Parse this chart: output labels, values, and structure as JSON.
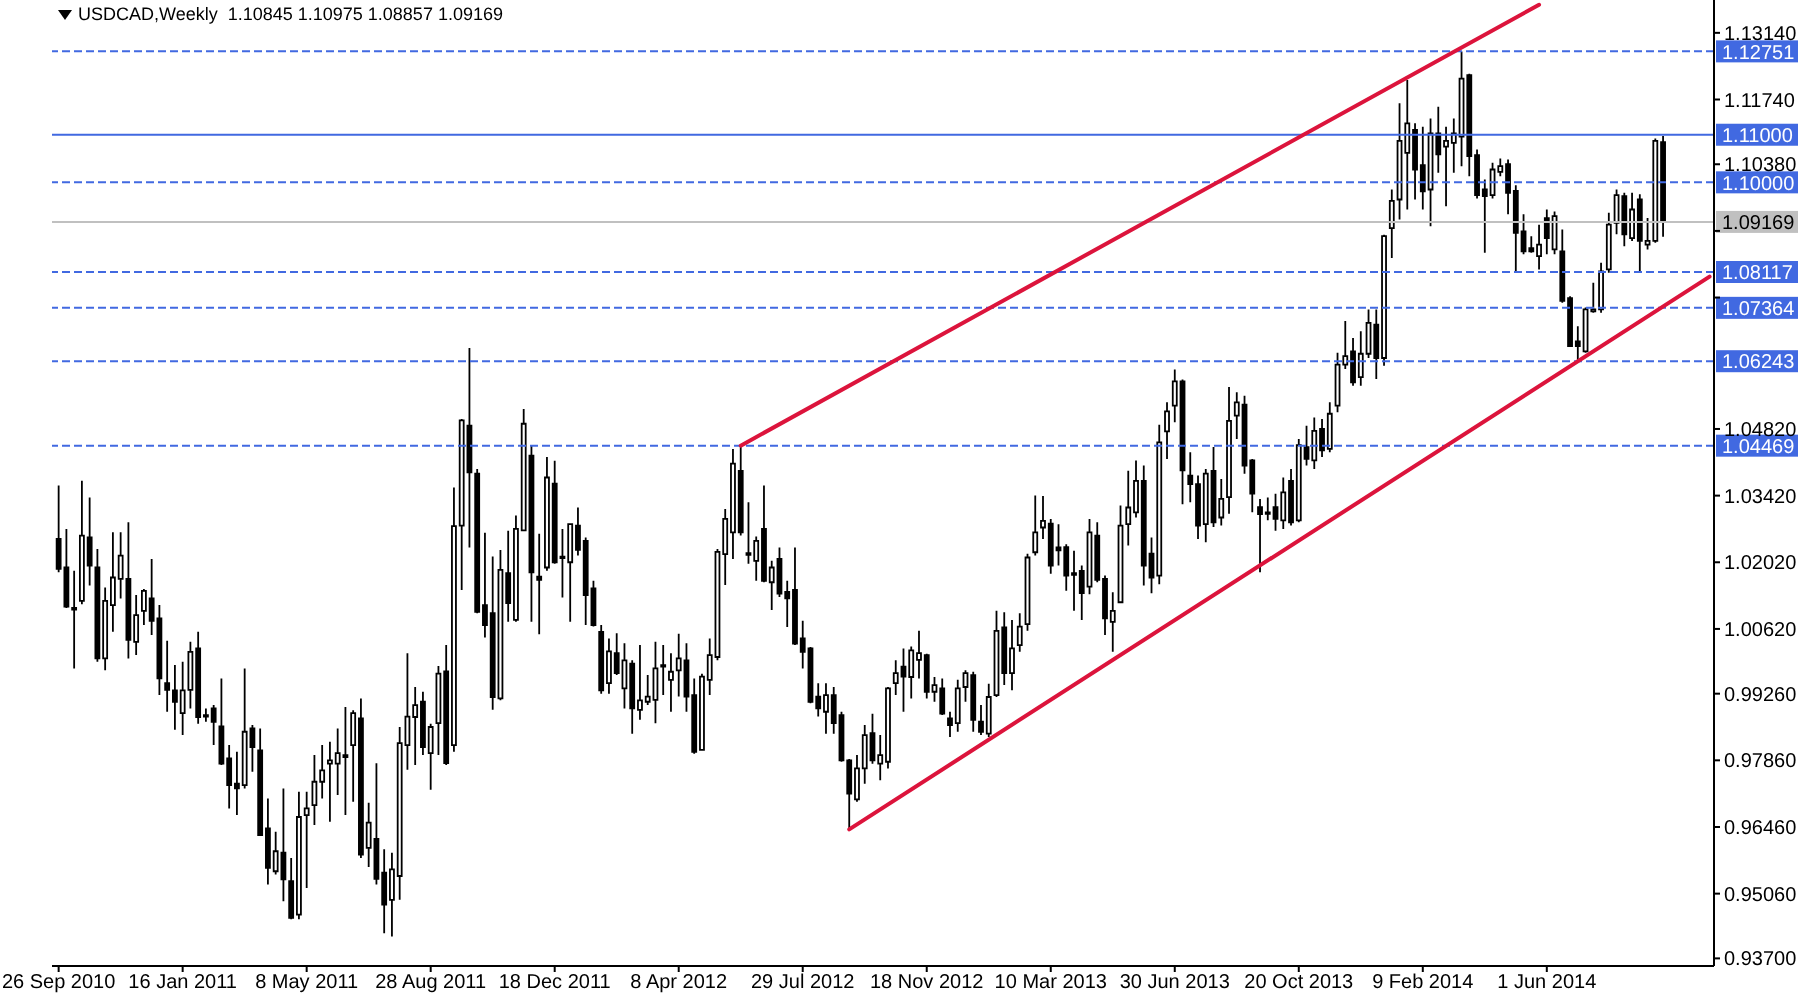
{
  "chart_data": {
    "type": "candlestick",
    "title": "USDCAD,Weekly  1.10845 1.10975 1.08857 1.09169",
    "color": "#000000",
    "x": [
      "2010-09-26",
      "2010-10-03",
      "2010-10-10",
      "2010-10-17",
      "2010-10-24",
      "2010-10-31",
      "2010-11-07",
      "2010-11-14",
      "2010-11-21",
      "2010-11-28",
      "2010-12-05",
      "2010-12-12",
      "2010-12-19",
      "2010-12-26",
      "2011-01-02",
      "2011-01-09",
      "2011-01-16",
      "2011-01-23",
      "2011-01-30",
      "2011-02-06",
      "2011-02-13",
      "2011-02-20",
      "2011-02-27",
      "2011-03-06",
      "2011-03-13",
      "2011-03-20",
      "2011-03-27",
      "2011-04-03",
      "2011-04-10",
      "2011-04-17",
      "2011-04-24",
      "2011-05-01",
      "2011-05-08",
      "2011-05-15",
      "2011-05-22",
      "2011-05-29",
      "2011-06-05",
      "2011-06-12",
      "2011-06-19",
      "2011-06-26",
      "2011-07-03",
      "2011-07-10",
      "2011-07-17",
      "2011-07-24",
      "2011-07-31",
      "2011-08-07",
      "2011-08-14",
      "2011-08-21",
      "2011-08-28",
      "2011-09-04",
      "2011-09-11",
      "2011-09-18",
      "2011-09-25",
      "2011-10-02",
      "2011-10-09",
      "2011-10-16",
      "2011-10-23",
      "2011-10-30",
      "2011-11-06",
      "2011-11-13",
      "2011-11-20",
      "2011-11-27",
      "2011-12-04",
      "2011-12-11",
      "2011-12-18",
      "2011-12-25",
      "2012-01-01",
      "2012-01-08",
      "2012-01-15",
      "2012-01-22",
      "2012-01-29",
      "2012-02-05",
      "2012-02-12",
      "2012-02-19",
      "2012-02-26",
      "2012-03-04",
      "2012-03-11",
      "2012-03-18",
      "2012-03-25",
      "2012-04-01",
      "2012-04-08",
      "2012-04-15",
      "2012-04-22",
      "2012-04-29",
      "2012-05-06",
      "2012-05-13",
      "2012-05-20",
      "2012-05-27",
      "2012-06-03",
      "2012-06-10",
      "2012-06-17",
      "2012-06-24",
      "2012-07-01",
      "2012-07-08",
      "2012-07-15",
      "2012-07-22",
      "2012-07-29",
      "2012-08-05",
      "2012-08-12",
      "2012-08-19",
      "2012-08-26",
      "2012-09-02",
      "2012-09-09",
      "2012-09-16",
      "2012-09-23",
      "2012-09-30",
      "2012-10-07",
      "2012-10-14",
      "2012-10-21",
      "2012-10-28",
      "2012-11-04",
      "2012-11-11",
      "2012-11-18",
      "2012-11-25",
      "2012-12-02",
      "2012-12-09",
      "2012-12-16",
      "2012-12-23",
      "2012-12-30",
      "2013-01-06",
      "2013-01-13",
      "2013-01-20",
      "2013-01-27",
      "2013-02-03",
      "2013-02-10",
      "2013-02-17",
      "2013-02-24",
      "2013-03-03",
      "2013-03-10",
      "2013-03-17",
      "2013-03-24",
      "2013-03-31",
      "2013-04-07",
      "2013-04-14",
      "2013-04-21",
      "2013-04-28",
      "2013-05-05",
      "2013-05-12",
      "2013-05-19",
      "2013-05-26",
      "2013-06-02",
      "2013-06-09",
      "2013-06-16",
      "2013-06-23",
      "2013-06-30",
      "2013-07-07",
      "2013-07-14",
      "2013-07-21",
      "2013-07-28",
      "2013-08-04",
      "2013-08-11",
      "2013-08-18",
      "2013-08-25",
      "2013-09-01",
      "2013-09-08",
      "2013-09-15",
      "2013-09-22",
      "2013-09-29",
      "2013-10-06",
      "2013-10-13",
      "2013-10-20",
      "2013-10-27",
      "2013-11-03",
      "2013-11-10",
      "2013-11-17",
      "2013-11-24",
      "2013-12-01",
      "2013-12-08",
      "2013-12-15",
      "2013-12-22",
      "2013-12-29",
      "2014-01-05",
      "2014-01-12",
      "2014-01-19",
      "2014-01-26",
      "2014-02-02",
      "2014-02-09",
      "2014-02-16",
      "2014-02-23",
      "2014-03-02",
      "2014-03-09",
      "2014-03-16",
      "2014-03-23",
      "2014-03-30",
      "2014-04-06",
      "2014-04-13",
      "2014-04-20",
      "2014-04-27",
      "2014-05-04",
      "2014-05-11",
      "2014-05-18",
      "2014-05-25",
      "2014-06-01",
      "2014-06-08",
      "2014-06-15",
      "2014-06-22",
      "2014-06-29",
      "2014-07-06",
      "2014-07-13",
      "2014-07-20",
      "2014-07-27",
      "2014-08-03",
      "2014-08-10",
      "2014-08-17",
      "2014-08-24",
      "2014-08-31",
      "2014-09-07",
      "2014-09-14"
    ],
    "ohlc": [
      [
        1.0251,
        1.0363,
        1.0181,
        1.0188
      ],
      [
        1.0191,
        1.0272,
        1.0106,
        1.0109
      ],
      [
        1.0106,
        1.0184,
        0.9979,
        1.0103
      ],
      [
        1.0121,
        1.0373,
        1.0114,
        1.0258
      ],
      [
        1.0254,
        1.0338,
        1.0153,
        1.0195
      ],
      [
        1.0191,
        1.023,
        0.9993,
        1.0
      ],
      [
        1.0,
        1.0149,
        0.9975,
        1.0121
      ],
      [
        1.0112,
        1.0265,
        1.0056,
        1.017
      ],
      [
        1.0167,
        1.0265,
        1.0126,
        1.0216
      ],
      [
        1.0167,
        1.0286,
        1.0,
        1.0039
      ],
      [
        1.0035,
        1.0133,
        1.0007,
        1.0091
      ],
      [
        1.01,
        1.0146,
        1.007,
        1.0142
      ],
      [
        1.0126,
        1.0209,
        1.0049,
        1.0079
      ],
      [
        1.0084,
        1.0112,
        0.9923,
        0.9958
      ],
      [
        0.9948,
        1.0037,
        0.9888,
        0.9934
      ],
      [
        0.9933,
        0.9986,
        0.985,
        0.9909
      ],
      [
        0.9885,
        0.9993,
        0.9839,
        0.9933
      ],
      [
        0.9934,
        1.0035,
        0.9895,
        1.0014
      ],
      [
        1.0021,
        1.0056,
        0.9863,
        0.9877
      ],
      [
        0.9881,
        0.9895,
        0.9867,
        0.988
      ],
      [
        0.9895,
        0.9902,
        0.9818,
        0.9867
      ],
      [
        0.9857,
        0.9958,
        0.9776,
        0.9779
      ],
      [
        0.979,
        0.9818,
        0.9685,
        0.9734
      ],
      [
        0.9737,
        0.9804,
        0.9671,
        0.9727
      ],
      [
        0.9734,
        0.9979,
        0.9727,
        0.9846
      ],
      [
        0.9853,
        0.986,
        0.9762,
        0.9814
      ],
      [
        0.9807,
        0.9853,
        0.9627,
        0.9629
      ],
      [
        0.9643,
        0.9706,
        0.9525,
        0.956
      ],
      [
        0.9553,
        0.9636,
        0.9546,
        0.9595
      ],
      [
        0.9592,
        0.9727,
        0.949,
        0.9536
      ],
      [
        0.9532,
        0.9581,
        0.9452,
        0.9455
      ],
      [
        0.9462,
        0.972,
        0.9452,
        0.9667
      ],
      [
        0.9671,
        0.972,
        0.9518,
        0.9685
      ],
      [
        0.9692,
        0.9797,
        0.965,
        0.9741
      ],
      [
        0.9741,
        0.9818,
        0.9706,
        0.9765
      ],
      [
        0.9779,
        0.9825,
        0.9657,
        0.9786
      ],
      [
        0.9779,
        0.9853,
        0.9713,
        0.9801
      ],
      [
        0.9797,
        0.9898,
        0.9671,
        0.9793
      ],
      [
        0.9818,
        0.9891,
        0.9699,
        0.9885
      ],
      [
        0.9874,
        0.9916,
        0.9581,
        0.9588
      ],
      [
        0.9602,
        0.9697,
        0.9562,
        0.9655
      ],
      [
        0.9621,
        0.978,
        0.9525,
        0.9537
      ],
      [
        0.955,
        0.9599,
        0.9423,
        0.9483
      ],
      [
        0.9493,
        0.9592,
        0.9416,
        0.9557
      ],
      [
        0.9543,
        0.9856,
        0.9493,
        0.9822
      ],
      [
        0.9818,
        1.0011,
        0.9766,
        0.9878
      ],
      [
        0.9877,
        0.994,
        0.9776,
        0.9902
      ],
      [
        0.9909,
        0.993,
        0.9797,
        0.9814
      ],
      [
        0.9801,
        0.9863,
        0.9724,
        0.9856
      ],
      [
        0.9864,
        0.9984,
        0.9797,
        0.9968
      ],
      [
        0.9973,
        1.0028,
        0.9776,
        0.978
      ],
      [
        0.9818,
        1.0359,
        0.9804,
        1.0278
      ],
      [
        1.0279,
        1.0503,
        1.0144,
        1.05
      ],
      [
        1.0489,
        1.0652,
        1.0233,
        1.0391
      ],
      [
        1.0388,
        1.0398,
        1.0095,
        1.0098
      ],
      [
        1.0112,
        1.0264,
        1.0044,
        1.007
      ],
      [
        1.0095,
        1.0214,
        0.9892,
        0.9919
      ],
      [
        0.9916,
        1.0228,
        0.9912,
        1.0186
      ],
      [
        1.0179,
        1.0268,
        1.0077,
        1.0116
      ],
      [
        1.0081,
        1.03,
        1.0077,
        1.0272
      ],
      [
        1.0269,
        1.0524,
        1.0268,
        1.0493
      ],
      [
        1.0426,
        1.0447,
        1.0077,
        1.0181
      ],
      [
        1.0172,
        1.0262,
        1.0051,
        1.0165
      ],
      [
        1.0191,
        1.0423,
        1.0184,
        1.038
      ],
      [
        1.0367,
        1.0415,
        1.0199,
        1.0202
      ],
      [
        1.0214,
        1.0272,
        1.0128,
        1.0212
      ],
      [
        1.0202,
        1.0283,
        1.0077,
        1.0282
      ],
      [
        1.0279,
        1.0317,
        1.0216,
        1.0228
      ],
      [
        1.0247,
        1.0254,
        1.007,
        1.0133
      ],
      [
        1.0147,
        1.0163,
        1.0067,
        1.007
      ],
      [
        1.0056,
        1.007,
        0.9926,
        0.9933
      ],
      [
        0.9948,
        1.0042,
        0.9926,
        1.0015
      ],
      [
        1.0011,
        1.0053,
        0.9965,
        0.9969
      ],
      [
        0.9937,
        1.0032,
        0.9895,
        0.9996
      ],
      [
        0.9989,
        0.9996,
        0.9842,
        0.9895
      ],
      [
        0.9892,
        1.0028,
        0.9871,
        0.9912
      ],
      [
        0.9909,
        0.9965,
        0.9902,
        0.992
      ],
      [
        0.9913,
        1.0035,
        0.9864,
        0.9979
      ],
      [
        0.9986,
        1.0028,
        0.9923,
        0.9985
      ],
      [
        0.9955,
        1.0011,
        0.9888,
        0.9972
      ],
      [
        0.9975,
        1.0052,
        0.992,
        1.0
      ],
      [
        0.9996,
        1.0032,
        0.9888,
        0.992
      ],
      [
        0.9923,
        0.9958,
        0.98,
        0.9804
      ],
      [
        0.9808,
        0.9968,
        0.9806,
        0.9962
      ],
      [
        0.9955,
        1.0042,
        0.9923,
        1.0007
      ],
      [
        1.0003,
        1.023,
        0.9996,
        1.0224
      ],
      [
        1.0219,
        1.0314,
        1.0154,
        1.0293
      ],
      [
        1.0265,
        1.044,
        1.0209,
        1.0409
      ],
      [
        1.0394,
        1.0447,
        1.0258,
        1.0265
      ],
      [
        1.0221,
        1.0328,
        1.0199,
        1.0218
      ],
      [
        1.0205,
        1.0256,
        1.0163,
        1.0247
      ],
      [
        1.0272,
        1.0363,
        1.016,
        1.0163
      ],
      [
        1.016,
        1.0205,
        1.0102,
        1.0191
      ],
      [
        1.0209,
        1.0233,
        1.0129,
        1.0136
      ],
      [
        1.014,
        1.0163,
        1.0066,
        1.0126
      ],
      [
        1.0144,
        1.0233,
        1.0028,
        1.0031
      ],
      [
        1.0042,
        1.0079,
        0.9979,
        1.0014
      ],
      [
        1.0021,
        1.0024,
        0.9906,
        0.9909
      ],
      [
        0.992,
        0.9948,
        0.9878,
        0.9895
      ],
      [
        0.9888,
        0.9948,
        0.9842,
        0.9923
      ],
      [
        0.9923,
        0.994,
        0.9842,
        0.9864
      ],
      [
        0.9881,
        0.9888,
        0.9783,
        0.9786
      ],
      [
        0.9786,
        0.9789,
        0.9641,
        0.9716
      ],
      [
        0.9704,
        0.9797,
        0.9699,
        0.9769
      ],
      [
        0.9769,
        0.986,
        0.9737,
        0.9839
      ],
      [
        0.9843,
        0.9884,
        0.9779,
        0.9786
      ],
      [
        0.9779,
        0.9839,
        0.9744,
        0.9797
      ],
      [
        0.9783,
        0.994,
        0.9769,
        0.9937
      ],
      [
        0.9948,
        0.9996,
        0.9923,
        0.9969
      ],
      [
        0.9983,
        1.0021,
        0.9888,
        0.9962
      ],
      [
        0.9961,
        1.0025,
        0.9916,
        1.0017
      ],
      [
        0.9997,
        1.0058,
        0.9958,
        1.0011
      ],
      [
        1.0007,
        1.001,
        0.9916,
        0.993
      ],
      [
        0.993,
        0.9961,
        0.9909,
        0.9944
      ],
      [
        0.9937,
        0.9958,
        0.9881,
        0.9884
      ],
      [
        0.9874,
        0.9888,
        0.9835,
        0.986
      ],
      [
        0.9864,
        0.9955,
        0.9846,
        0.9937
      ],
      [
        0.994,
        0.9975,
        0.9909,
        0.9969
      ],
      [
        0.9965,
        0.9972,
        0.9846,
        0.9871
      ],
      [
        0.9867,
        0.9902,
        0.9839,
        0.9846
      ],
      [
        0.9842,
        0.9947,
        0.9835,
        0.9919
      ],
      [
        0.9923,
        1.01,
        0.9919,
        1.0058
      ],
      [
        1.0065,
        1.0097,
        0.9944,
        0.9969
      ],
      [
        0.9969,
        1.0081,
        0.9933,
        1.0021
      ],
      [
        1.0028,
        1.0095,
        1.0014,
        1.0067
      ],
      [
        1.0072,
        1.022,
        1.0058,
        1.0212
      ],
      [
        1.0223,
        1.0342,
        1.0216,
        1.0265
      ],
      [
        1.0275,
        1.0341,
        1.0251,
        1.0289
      ],
      [
        1.0283,
        1.0293,
        1.0178,
        1.0195
      ],
      [
        1.0233,
        1.0282,
        1.0195,
        1.0227
      ],
      [
        1.0234,
        1.024,
        1.0142,
        1.0174
      ],
      [
        1.0179,
        1.0226,
        1.01,
        1.0178
      ],
      [
        1.0184,
        1.0195,
        1.0081,
        1.0137
      ],
      [
        1.0151,
        1.0293,
        1.0135,
        1.0265
      ],
      [
        1.0258,
        1.0286,
        1.016,
        1.0165
      ],
      [
        1.0167,
        1.0174,
        1.0049,
        1.0084
      ],
      [
        1.0077,
        1.0139,
        1.0014,
        1.01
      ],
      [
        1.0118,
        1.0321,
        1.0116,
        1.0279
      ],
      [
        1.0282,
        1.0394,
        1.0237,
        1.0317
      ],
      [
        1.0307,
        1.0416,
        1.0296,
        1.0373
      ],
      [
        1.0373,
        1.0405,
        1.0153,
        1.0195
      ],
      [
        1.022,
        1.0254,
        1.0137,
        1.017
      ],
      [
        1.0174,
        1.0491,
        1.0156,
        1.0454
      ],
      [
        1.0477,
        1.0538,
        1.0419,
        1.0519
      ],
      [
        1.0531,
        1.0607,
        1.0496,
        1.0582
      ],
      [
        1.0582,
        1.0586,
        1.0324,
        1.0395
      ],
      [
        1.0384,
        1.0433,
        1.0328,
        1.0366
      ],
      [
        1.0366,
        1.0384,
        1.0251,
        1.0279
      ],
      [
        1.0282,
        1.0398,
        1.0244,
        1.0388
      ],
      [
        1.0394,
        1.0444,
        1.0276,
        1.0286
      ],
      [
        1.0296,
        1.0377,
        1.0279,
        1.0335
      ],
      [
        1.0339,
        1.057,
        1.0304,
        1.0499
      ],
      [
        1.051,
        1.0559,
        1.0461,
        1.0538
      ],
      [
        1.0533,
        1.0552,
        1.0388,
        1.0405
      ],
      [
        1.0416,
        1.0419,
        1.0307,
        1.0346
      ],
      [
        1.0318,
        1.0335,
        1.0181,
        1.0303
      ],
      [
        1.0307,
        1.0338,
        1.029,
        1.0306
      ],
      [
        1.0318,
        1.0346,
        1.0268,
        1.0293
      ],
      [
        1.029,
        1.038,
        1.0272,
        1.0349
      ],
      [
        1.0373,
        1.0398,
        1.0279,
        1.0286
      ],
      [
        1.029,
        1.0461,
        1.0286,
        1.0448
      ],
      [
        1.0444,
        1.0489,
        1.0405,
        1.0419
      ],
      [
        1.0416,
        1.0506,
        1.0398,
        1.0478
      ],
      [
        1.0482,
        1.0503,
        1.0423,
        1.0437
      ],
      [
        1.044,
        1.0538,
        1.0433,
        1.0514
      ],
      [
        1.0531,
        1.0642,
        1.0517,
        1.0617
      ],
      [
        1.0617,
        1.0709,
        1.0608,
        1.0635
      ],
      [
        1.0645,
        1.0673,
        1.0573,
        1.058
      ],
      [
        1.0591,
        1.0687,
        1.0573,
        1.064
      ],
      [
        1.064,
        1.0733,
        1.0631,
        1.0705
      ],
      [
        1.0701,
        1.0733,
        1.0587,
        1.0631
      ],
      [
        1.0631,
        1.089,
        1.0615,
        1.0887
      ],
      [
        1.0904,
        1.0985,
        1.0841,
        1.0961
      ],
      [
        1.0964,
        1.1166,
        1.0922,
        1.1087
      ],
      [
        1.1062,
        1.1215,
        1.0943,
        1.1124
      ],
      [
        1.111,
        1.1124,
        1.0964,
        1.1027
      ],
      [
        1.1036,
        1.1117,
        1.0943,
        1.0981
      ],
      [
        1.0985,
        1.1134,
        1.0908,
        1.1103
      ],
      [
        1.1103,
        1.1159,
        1.102,
        1.1059
      ],
      [
        1.1075,
        1.1117,
        1.095,
        1.1087
      ],
      [
        1.1083,
        1.1134,
        1.102,
        1.1103
      ],
      [
        1.1096,
        1.1275,
        1.1034,
        1.1218
      ],
      [
        1.1225,
        1.1228,
        1.1013,
        1.1055
      ],
      [
        1.1057,
        1.1069,
        1.0966,
        1.0973
      ],
      [
        1.0985,
        1.1006,
        1.0852,
        1.0971
      ],
      [
        1.0973,
        1.1041,
        1.0966,
        1.1027
      ],
      [
        1.1022,
        1.105,
        1.1013,
        1.1034
      ],
      [
        1.1038,
        1.1048,
        1.0933,
        1.0978
      ],
      [
        1.0982,
        1.0994,
        1.0813,
        1.0894
      ],
      [
        1.0897,
        1.0933,
        1.0849,
        1.0855
      ],
      [
        1.0862,
        1.0887,
        1.0852,
        1.0855
      ],
      [
        1.0845,
        1.0911,
        1.0817,
        1.0869
      ],
      [
        1.0925,
        1.0943,
        1.0849,
        1.0883
      ],
      [
        1.0859,
        1.0939,
        1.0849,
        1.0929
      ],
      [
        1.0855,
        1.0901,
        1.0747,
        1.0751
      ],
      [
        1.0757,
        1.0761,
        1.0654,
        1.0656
      ],
      [
        1.0666,
        1.0698,
        1.0624,
        1.0656
      ],
      [
        1.0645,
        1.0737,
        1.0642,
        1.0733
      ],
      [
        1.0729,
        1.0789,
        1.0726,
        1.0733
      ],
      [
        1.0733,
        1.0831,
        1.0726,
        1.0813
      ],
      [
        1.0817,
        1.0936,
        1.081,
        1.0911
      ],
      [
        1.0915,
        1.0985,
        1.0891,
        1.0973
      ],
      [
        1.0971,
        1.0978,
        1.0866,
        1.0891
      ],
      [
        1.0883,
        1.0978,
        1.0877,
        1.0943
      ],
      [
        1.0964,
        1.0975,
        1.0813,
        1.0877
      ],
      [
        1.0869,
        1.0925,
        1.0859,
        1.0877
      ],
      [
        1.0877,
        1.1092,
        1.0873,
        1.1087
      ],
      [
        1.10845,
        1.10975,
        1.08857,
        1.09169
      ]
    ],
    "series": [
      {
        "type": "line",
        "x": [
          "2012-06-03",
          "2014-05-25"
        ],
        "values": [
          1.0447,
          1.1373
        ],
        "color": "#dc143c"
      },
      {
        "type": "line",
        "x": [
          "2012-09-09",
          "2014-10-26"
        ],
        "values": [
          0.9641,
          1.0802
        ],
        "color": "#dc143c"
      }
    ],
    "xlim": [
      "2010-09-20",
      "2014-10-30"
    ],
    "xticks": [
      {
        "value": "2010-09-26",
        "label": "26 Sep 2010"
      },
      {
        "value": "2011-01-16",
        "label": "16 Jan 2011"
      },
      {
        "value": "2011-05-08",
        "label": "8 May 2011"
      },
      {
        "value": "2011-08-28",
        "label": "28 Aug 2011"
      },
      {
        "value": "2011-12-18",
        "label": "18 Dec 2011"
      },
      {
        "value": "2012-04-08",
        "label": "8 Apr 2012"
      },
      {
        "value": "2012-07-29",
        "label": "29 Jul 2012"
      },
      {
        "value": "2012-11-18",
        "label": "18 Nov 2012"
      },
      {
        "value": "2013-03-10",
        "label": "10 Mar 2013"
      },
      {
        "value": "2013-06-30",
        "label": "30 Jun 2013"
      },
      {
        "value": "2013-10-20",
        "label": "20 Oct 2013"
      },
      {
        "value": "2014-02-09",
        "label": "9 Feb 2014"
      },
      {
        "value": "2014-06-01",
        "label": "1 Jun 2014"
      }
    ],
    "ylim": [
      0.9354,
      1.1383
    ],
    "yticks": [
      {
        "value": 1.1314,
        "label": "1.13140"
      },
      {
        "value": 1.1174,
        "label": "1.11740"
      },
      {
        "value": 1.1038,
        "label": "1.10380"
      },
      {
        "value": 1.0898,
        "label": null
      },
      {
        "value": 1.0758,
        "label": null
      },
      {
        "value": 1.0482,
        "label": "1.04820"
      },
      {
        "value": 1.0342,
        "label": "1.03420"
      },
      {
        "value": 1.0202,
        "label": "1.02020"
      },
      {
        "value": 1.0062,
        "label": "1.00620"
      },
      {
        "value": 0.9926,
        "label": "0.99260"
      },
      {
        "value": 0.9786,
        "label": "0.97860"
      },
      {
        "value": 0.9646,
        "label": "0.96460"
      },
      {
        "value": 0.9506,
        "label": "0.95060"
      },
      {
        "value": 0.937,
        "label": "0.93700"
      }
    ],
    "ref_lines": [
      {
        "axis": "y",
        "value": 1.12751,
        "label": "1.12751",
        "color": "#4169e1",
        "line_style": "dashed"
      },
      {
        "axis": "y",
        "value": 1.11,
        "label": "1.11000",
        "color": "#4169e1",
        "line_style": "solid"
      },
      {
        "axis": "y",
        "value": 1.1,
        "label": "1.10000",
        "color": "#4169e1",
        "line_style": "dashed"
      },
      {
        "axis": "y",
        "value": 1.09169,
        "label": "1.09169",
        "color": "#c0c0c0",
        "line_style": "solid"
      },
      {
        "axis": "y",
        "value": 1.08117,
        "label": "1.08117",
        "color": "#4169e1",
        "line_style": "dashed"
      },
      {
        "axis": "y",
        "value": 1.07364,
        "label": "1.07364",
        "color": "#4169e1",
        "line_style": "dashed"
      },
      {
        "axis": "y",
        "value": 1.06243,
        "label": "1.06243",
        "color": "#4169e1",
        "line_style": "dashed"
      },
      {
        "axis": "y",
        "value": 1.04469,
        "label": "1.04469",
        "color": "#4169e1",
        "line_style": "dashed"
      }
    ]
  }
}
